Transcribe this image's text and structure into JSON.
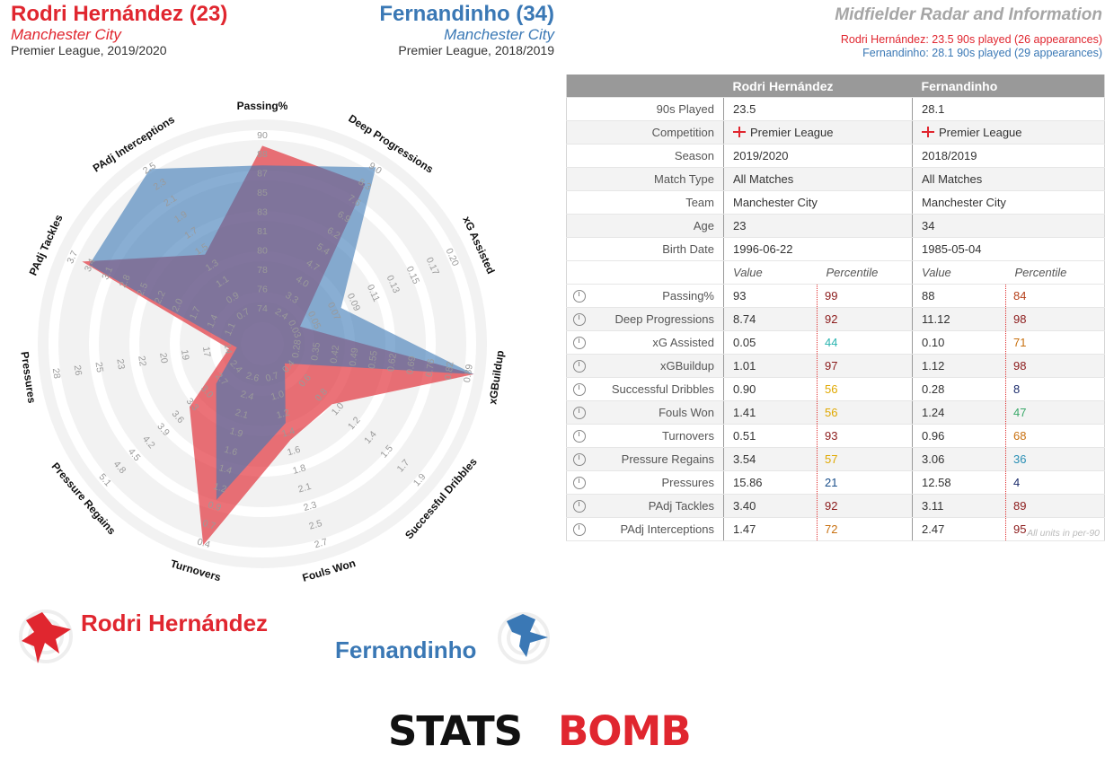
{
  "player1": {
    "header_name": "Rodri Hernández (23)",
    "team": "Manchester City",
    "competition_line": "Premier League, 2019/2020",
    "note": "Rodri Hernández: 23.5 90s played (26 appearances)",
    "legend_name": "Rodri Hernández",
    "color": "#e0262f"
  },
  "player2": {
    "header_name": "Fernandinho (34)",
    "team": "Manchester City",
    "competition_line": "Premier League, 2018/2019",
    "note": "Fernandinho: 28.1 90s played (29 appearances)",
    "legend_name": "Fernandinho",
    "color": "#3a78b5"
  },
  "page_title": "Midfielder Radar and Information",
  "table": {
    "col_headers": [
      "Rodri Hernández",
      "Fernandinho"
    ],
    "info_rows": [
      {
        "label": "90s Played",
        "p1": "23.5",
        "p2": "28.1"
      },
      {
        "label": "Competition",
        "p1": "Premier League",
        "p2": "Premier League",
        "flag": true
      },
      {
        "label": "Season",
        "p1": "2019/2020",
        "p2": "2018/2019"
      },
      {
        "label": "Match Type",
        "p1": "All Matches",
        "p2": "All Matches"
      },
      {
        "label": "Team",
        "p1": "Manchester City",
        "p2": "Manchester City"
      },
      {
        "label": "Age",
        "p1": "23",
        "p2": "34"
      },
      {
        "label": "Birth Date",
        "p1": "1996-06-22",
        "p2": "1985-05-04"
      }
    ],
    "sub_headers": {
      "value": "Value",
      "percentile": "Percentile"
    },
    "stat_rows": [
      {
        "label": "Passing%",
        "p1_val": "93",
        "p1_pct": "99",
        "p1_pct_color": "#8b1a1a",
        "p2_val": "88",
        "p2_pct": "84",
        "p2_pct_color": "#b5401a"
      },
      {
        "label": "Deep Progressions",
        "p1_val": "8.74",
        "p1_pct": "92",
        "p1_pct_color": "#8b1a1a",
        "p2_val": "11.12",
        "p2_pct": "98",
        "p2_pct_color": "#8b1a1a"
      },
      {
        "label": "xG Assisted",
        "p1_val": "0.05",
        "p1_pct": "44",
        "p1_pct_color": "#2ab5b0",
        "p2_val": "0.10",
        "p2_pct": "71",
        "p2_pct_color": "#c8700f"
      },
      {
        "label": "xGBuildup",
        "p1_val": "1.01",
        "p1_pct": "97",
        "p1_pct_color": "#8b1a1a",
        "p2_val": "1.12",
        "p2_pct": "98",
        "p2_pct_color": "#8b1a1a"
      },
      {
        "label": "Successful Dribbles",
        "p1_val": "0.90",
        "p1_pct": "56",
        "p1_pct_color": "#e0a800",
        "p2_val": "0.28",
        "p2_pct": "8",
        "p2_pct_color": "#1a2a6b"
      },
      {
        "label": "Fouls Won",
        "p1_val": "1.41",
        "p1_pct": "56",
        "p1_pct_color": "#e0a800",
        "p2_val": "1.24",
        "p2_pct": "47",
        "p2_pct_color": "#3aa96a"
      },
      {
        "label": "Turnovers",
        "p1_val": "0.51",
        "p1_pct": "93",
        "p1_pct_color": "#8b1a1a",
        "p2_val": "0.96",
        "p2_pct": "68",
        "p2_pct_color": "#c8700f"
      },
      {
        "label": "Pressure Regains",
        "p1_val": "3.54",
        "p1_pct": "57",
        "p1_pct_color": "#e0a800",
        "p2_val": "3.06",
        "p2_pct": "36",
        "p2_pct_color": "#2a8fb5"
      },
      {
        "label": "Pressures",
        "p1_val": "15.86",
        "p1_pct": "21",
        "p1_pct_color": "#1a4f8b",
        "p2_val": "12.58",
        "p2_pct": "4",
        "p2_pct_color": "#1a2a6b"
      },
      {
        "label": "PAdj Tackles",
        "p1_val": "3.40",
        "p1_pct": "92",
        "p1_pct_color": "#8b1a1a",
        "p2_val": "3.11",
        "p2_pct": "89",
        "p2_pct_color": "#8b1a1a"
      },
      {
        "label": "PAdj Interceptions",
        "p1_val": "1.47",
        "p1_pct": "72",
        "p1_pct_color": "#c8700f",
        "p2_val": "2.47",
        "p2_pct": "95",
        "p2_pct_color": "#8b1a1a"
      }
    ],
    "units_note": "All units in per-90"
  },
  "logo_text": "STATSBOMB",
  "chart_data": {
    "type": "radar",
    "axes": [
      {
        "name": "Passing%",
        "ticks": [
          "74",
          "76",
          "78",
          "80",
          "81",
          "83",
          "85",
          "87",
          "88",
          "90"
        ]
      },
      {
        "name": "Deep Progressions",
        "ticks": [
          "2.4",
          "3.3",
          "4.0",
          "4.7",
          "5.4",
          "6.2",
          "6.9",
          "7.6",
          "8.3",
          "9.0"
        ]
      },
      {
        "name": "xG Assisted",
        "ticks": [
          "0.03",
          "0.05",
          "0.07",
          "0.09",
          "0.11",
          "0.13",
          "0.15",
          "0.17",
          "0.20"
        ]
      },
      {
        "name": "xGBuildup",
        "ticks": [
          "0.28",
          "0.35",
          "0.42",
          "0.49",
          "0.55",
          "0.62",
          "0.69",
          "0.76",
          "0.82",
          "0.89"
        ]
      },
      {
        "name": "Successful Dribbles",
        "ticks": [
          "0.4",
          "0.6",
          "0.8",
          "1.0",
          "1.2",
          "1.4",
          "1.5",
          "1.7",
          "1.9"
        ]
      },
      {
        "name": "Fouls Won",
        "ticks": [
          "0.7",
          "1.0",
          "1.2",
          "1.4",
          "1.6",
          "1.8",
          "2.1",
          "2.3",
          "2.5",
          "2.7"
        ]
      },
      {
        "name": "Turnovers",
        "ticks": [
          "2.6",
          "2.4",
          "2.1",
          "1.9",
          "1.6",
          "1.4",
          "1.2",
          "0.9",
          "0.7",
          "0.4"
        ]
      },
      {
        "name": "Pressure Regains",
        "ticks": [
          "2.4",
          "2.7",
          "3.0",
          "3.3",
          "3.6",
          "3.9",
          "4.2",
          "4.5",
          "4.8",
          "5.1"
        ]
      },
      {
        "name": "Pressures",
        "ticks": [
          "14",
          "17",
          "19",
          "20",
          "22",
          "23",
          "25",
          "26",
          "28"
        ]
      },
      {
        "name": "PAdj Tackles",
        "ticks": [
          "1.1",
          "1.4",
          "1.7",
          "2.0",
          "2.2",
          "2.5",
          "2.8",
          "3.1",
          "3.4",
          "3.7"
        ]
      },
      {
        "name": "PAdj Interceptions",
        "ticks": [
          "0.7",
          "0.9",
          "1.1",
          "1.3",
          "1.5",
          "1.7",
          "1.9",
          "2.1",
          "2.3",
          "2.5"
        ]
      }
    ],
    "series": [
      {
        "name": "Rodri Hernández",
        "values": [
          93,
          8.74,
          0.05,
          1.01,
          0.9,
          1.41,
          0.51,
          3.54,
          15.86,
          3.4,
          1.47
        ],
        "fractions": [
          0.92,
          0.88,
          0.12,
          1.0,
          0.38,
          0.42,
          0.98,
          0.4,
          0.08,
          0.92,
          0.45
        ]
      },
      {
        "name": "Fernandinho",
        "values": [
          88,
          11.12,
          0.1,
          1.12,
          0.28,
          1.24,
          0.96,
          3.06,
          12.58,
          3.11,
          2.47
        ],
        "fractions": [
          0.82,
          0.98,
          0.35,
          1.0,
          0.06,
          0.33,
          0.74,
          0.22,
          0.04,
          0.88,
          0.97
        ]
      }
    ]
  }
}
